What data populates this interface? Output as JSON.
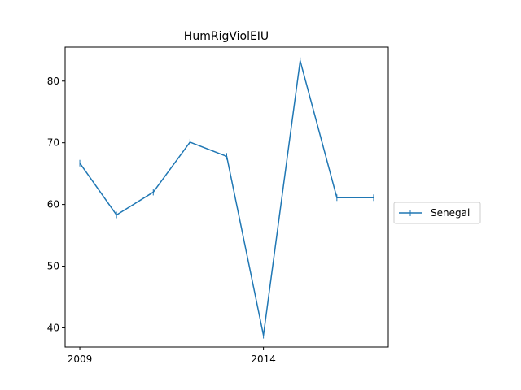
{
  "chart_data": {
    "type": "line",
    "title": "HumRigViolEIU",
    "xlabel": "",
    "ylabel": "",
    "x": [
      2009,
      2010,
      2011,
      2012,
      2013,
      2014,
      2015,
      2016,
      2017
    ],
    "xlim": [
      2008.6,
      2017.4
    ],
    "ylim": [
      36.9,
      85.5
    ],
    "xticks": [
      2009,
      2014
    ],
    "yticks": [
      40,
      50,
      60,
      70,
      80
    ],
    "grid": false,
    "legend_position": "right",
    "series": [
      {
        "name": "Senegal",
        "color": "#1f77b4",
        "values": [
          66.7,
          58.3,
          62.0,
          70.1,
          67.8,
          38.8,
          83.3,
          61.1,
          61.1
        ]
      }
    ]
  }
}
